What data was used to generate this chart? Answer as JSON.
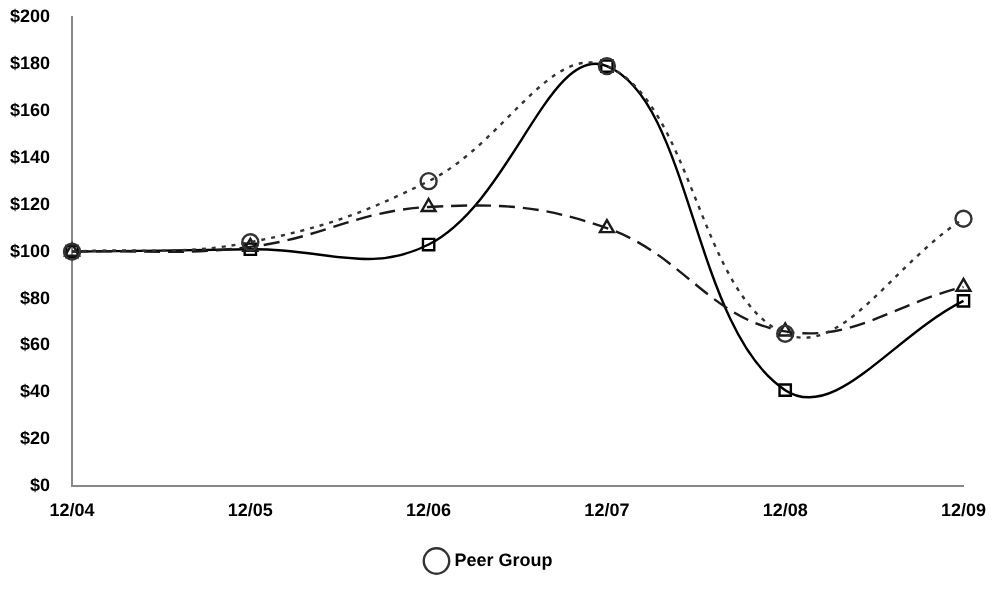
{
  "chart_data": {
    "type": "line",
    "categories": [
      "12/04",
      "12/05",
      "12/06",
      "12/07",
      "12/08",
      "12/09"
    ],
    "series": [
      {
        "color": "#000000",
        "marker": "square",
        "line_style": "solid",
        "values": [
          100,
          101,
          103,
          179,
          41,
          79
        ]
      },
      {
        "color": "#1a1a1a",
        "marker": "triangle",
        "line_style": "dashed",
        "values": [
          100,
          102,
          119,
          110,
          66,
          85
        ]
      },
      {
        "name": "Peer Group",
        "color": "#333333",
        "marker": "circle",
        "line_style": "dotted",
        "values": [
          100,
          104,
          130,
          179,
          65,
          114
        ]
      }
    ],
    "ylim": [
      0,
      200
    ],
    "yticks": [
      {
        "value": 0,
        "label": "$0"
      },
      {
        "value": 20,
        "label": "$20"
      },
      {
        "value": 40,
        "label": "$40"
      },
      {
        "value": 60,
        "label": "$60"
      },
      {
        "value": 80,
        "label": "$80"
      },
      {
        "value": 100,
        "label": "$100"
      },
      {
        "value": 120,
        "label": "$120"
      },
      {
        "value": 140,
        "label": "$140"
      },
      {
        "value": 160,
        "label": "$160"
      },
      {
        "value": 180,
        "label": "$180"
      },
      {
        "value": 200,
        "label": "$200"
      }
    ],
    "grid": false,
    "legend": "bottom"
  }
}
